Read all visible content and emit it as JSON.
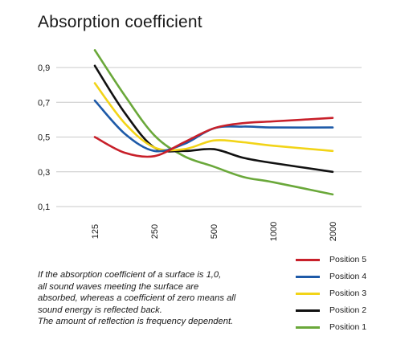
{
  "title": "Absorption coefficient",
  "note_lines": [
    "If the absorption coefficient of a surface is 1,0,",
    "all sound waves meeting the surface are",
    "absorbed, whereas a coefficient of zero means all",
    "sound energy is reflected back.",
    "The amount of reflection is frequency dependent."
  ],
  "chart_data": {
    "type": "line",
    "title": "Absorption coefficient",
    "xlabel": "",
    "ylabel": "",
    "x_scale": "log",
    "categories": [
      "125",
      "250",
      "500",
      "1000",
      "2000"
    ],
    "yticks": [
      "0,9",
      "0,7",
      "0,5",
      "0,3",
      "0,1"
    ],
    "ylim": [
      0.1,
      1.0
    ],
    "grid": true,
    "legend_position": "bottom-right",
    "series": [
      {
        "name": "Position 5",
        "color": "#c8202a",
        "x": [
          125,
          177,
          250,
          354,
          500,
          707,
          1000,
          2000
        ],
        "y": [
          0.5,
          0.41,
          0.39,
          0.47,
          0.55,
          0.58,
          0.59,
          0.61
        ]
      },
      {
        "name": "Position 4",
        "color": "#1e5aa8",
        "x": [
          125,
          177,
          250,
          354,
          500,
          707,
          1000,
          2000
        ],
        "y": [
          0.71,
          0.52,
          0.42,
          0.46,
          0.55,
          0.56,
          0.555,
          0.555
        ]
      },
      {
        "name": "Position 3",
        "color": "#f2d418",
        "x": [
          125,
          177,
          250,
          354,
          500,
          707,
          1000,
          2000
        ],
        "y": [
          0.81,
          0.58,
          0.44,
          0.43,
          0.48,
          0.47,
          0.45,
          0.42
        ]
      },
      {
        "name": "Position 2",
        "color": "#111111",
        "x": [
          125,
          177,
          250,
          354,
          500,
          707,
          1000,
          2000
        ],
        "y": [
          0.91,
          0.64,
          0.44,
          0.42,
          0.43,
          0.38,
          0.35,
          0.3
        ]
      },
      {
        "name": "Position 1",
        "color": "#6aa83a",
        "x": [
          125,
          177,
          250,
          354,
          500,
          707,
          1000,
          2000
        ],
        "y": [
          1.0,
          0.74,
          0.51,
          0.39,
          0.33,
          0.27,
          0.24,
          0.17
        ]
      }
    ]
  }
}
